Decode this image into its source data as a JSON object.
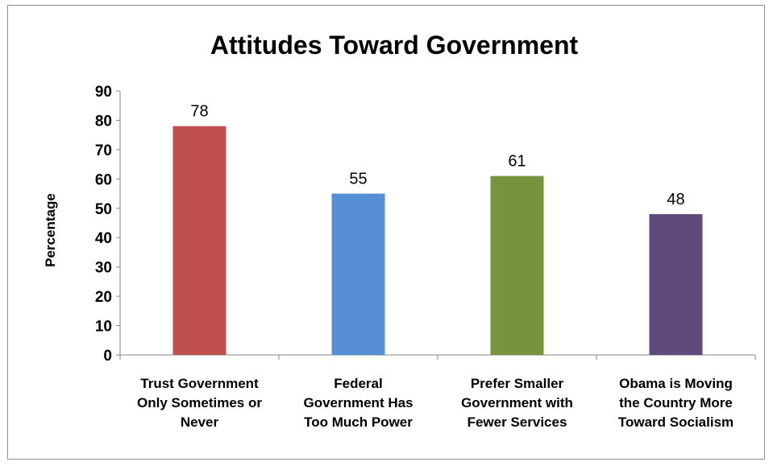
{
  "chart_data": {
    "type": "bar",
    "title": "Attitudes Toward Government",
    "xlabel": "",
    "ylabel": "Percentage",
    "ylim": [
      0,
      90
    ],
    "yticks": [
      0,
      10,
      20,
      30,
      40,
      50,
      60,
      70,
      80,
      90
    ],
    "grid": false,
    "legend": "none",
    "categories": [
      [
        "Trust Government",
        "Only Sometimes or",
        "Never"
      ],
      [
        "Federal",
        "Government Has",
        "Too Much Power"
      ],
      [
        "Prefer Smaller",
        "Government with",
        "Fewer Services"
      ],
      [
        "Obama is Moving",
        "the Country More",
        "Toward Socialism"
      ]
    ],
    "values": [
      78,
      55,
      61,
      48
    ],
    "colors": [
      "#c0504d",
      "#558ed5",
      "#77933c",
      "#604a7b"
    ]
  }
}
